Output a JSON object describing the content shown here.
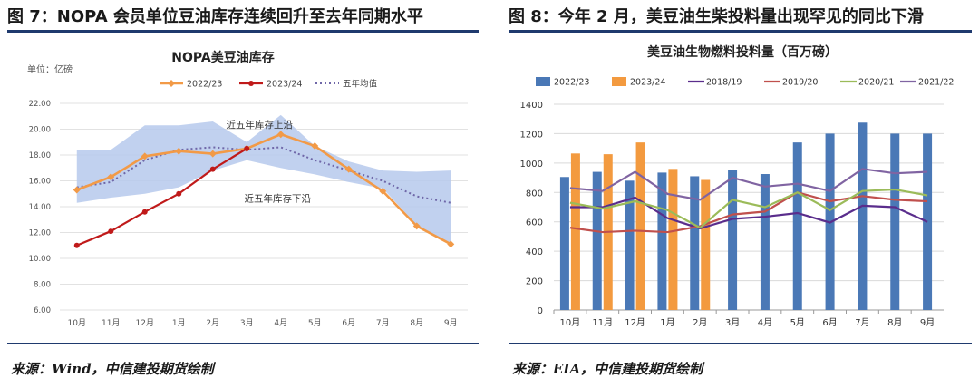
{
  "left_panel": {
    "figure_title": "图 7：NOPA 会员单位豆油库存连续回升至去年同期水平",
    "source": "来源：Wind，中信建投期货绘制"
  },
  "right_panel": {
    "figure_title": "图 8：今年 2 月，美豆油生柴投料量出现罕见的同比下滑",
    "source": "来源：EIA，中信建投期货绘制"
  },
  "colors": {
    "rule": "#1f3a6e",
    "band": "#b6c9ec",
    "orange": "#f29a47",
    "darkred": "#c01a1a",
    "dotted": "#6f67a8",
    "blue_bar": "#4a78b6",
    "orange_bar": "#f39a3f",
    "s1819": "#5a2d8c",
    "s1920": "#c0504d",
    "s2021": "#9bbb59",
    "s2122": "#8064a2"
  },
  "chart_data": [
    {
      "type": "line",
      "title": "NOPA美豆油库存",
      "unit_label": "单位：亿磅",
      "categories": [
        "10月",
        "11月",
        "12月",
        "1月",
        "2月",
        "3月",
        "4月",
        "5月",
        "6月",
        "7月",
        "8月",
        "9月"
      ],
      "ylim": [
        6,
        22
      ],
      "yticks": [
        "6.00",
        "8.00",
        "10.00",
        "12.00",
        "14.00",
        "16.00",
        "18.00",
        "20.00",
        "22.00"
      ],
      "band": {
        "upper": [
          18.4,
          18.4,
          20.3,
          20.3,
          20.6,
          19.0,
          21.1,
          18.7,
          17.5,
          16.8,
          16.7,
          16.8
        ],
        "lower": [
          14.3,
          14.7,
          15.0,
          15.5,
          16.8,
          17.6,
          17.0,
          16.5,
          15.9,
          15.4,
          12.6,
          11.1
        ],
        "upper_label": "近五年库存上沿",
        "lower_label": "近五年库存下沿"
      },
      "series": [
        {
          "name": "2022/23",
          "style": "orange-marker",
          "values": [
            15.3,
            16.3,
            17.9,
            18.3,
            18.1,
            18.5,
            19.6,
            18.7,
            16.9,
            15.2,
            12.5,
            11.1
          ]
        },
        {
          "name": "2023/24",
          "style": "darkred-marker",
          "values": [
            11.0,
            12.1,
            13.6,
            15.0,
            16.9,
            18.5,
            null,
            null,
            null,
            null,
            null,
            null
          ]
        },
        {
          "name": "五年均值",
          "style": "dotted",
          "values": [
            15.5,
            15.9,
            17.6,
            18.4,
            18.6,
            18.4,
            18.6,
            17.6,
            16.8,
            16.0,
            14.8,
            14.3
          ]
        }
      ],
      "grid": true,
      "legend": "top"
    },
    {
      "type": "bar",
      "title": "美豆油生物燃料投料量（百万磅）",
      "categories": [
        "10月",
        "11月",
        "12月",
        "1月",
        "2月",
        "3月",
        "4月",
        "5月",
        "6月",
        "7月",
        "8月",
        "9月"
      ],
      "ylim": [
        0,
        1400
      ],
      "yticks": [
        "0",
        "200",
        "400",
        "600",
        "800",
        "1000",
        "1200",
        "1400"
      ],
      "series": [
        {
          "name": "2022/23",
          "kind": "bar",
          "values": [
            905,
            940,
            880,
            935,
            910,
            950,
            925,
            1140,
            1200,
            1275,
            1200,
            1200
          ]
        },
        {
          "name": "2023/24",
          "kind": "bar",
          "values": [
            1065,
            1060,
            1140,
            960,
            885,
            null,
            null,
            null,
            null,
            null,
            null,
            null
          ]
        },
        {
          "name": "2018/19",
          "kind": "line",
          "values": [
            700,
            700,
            765,
            625,
            555,
            620,
            635,
            660,
            595,
            710,
            700,
            600
          ]
        },
        {
          "name": "2019/20",
          "kind": "line",
          "values": [
            560,
            530,
            540,
            530,
            570,
            650,
            670,
            800,
            740,
            775,
            750,
            740
          ]
        },
        {
          "name": "2020/21",
          "kind": "line",
          "values": [
            730,
            690,
            740,
            680,
            560,
            750,
            700,
            800,
            680,
            810,
            820,
            780
          ]
        },
        {
          "name": "2021/22",
          "kind": "line",
          "values": [
            830,
            810,
            940,
            790,
            750,
            900,
            840,
            860,
            810,
            960,
            930,
            940
          ]
        }
      ],
      "grid": true,
      "legend": "top"
    }
  ]
}
